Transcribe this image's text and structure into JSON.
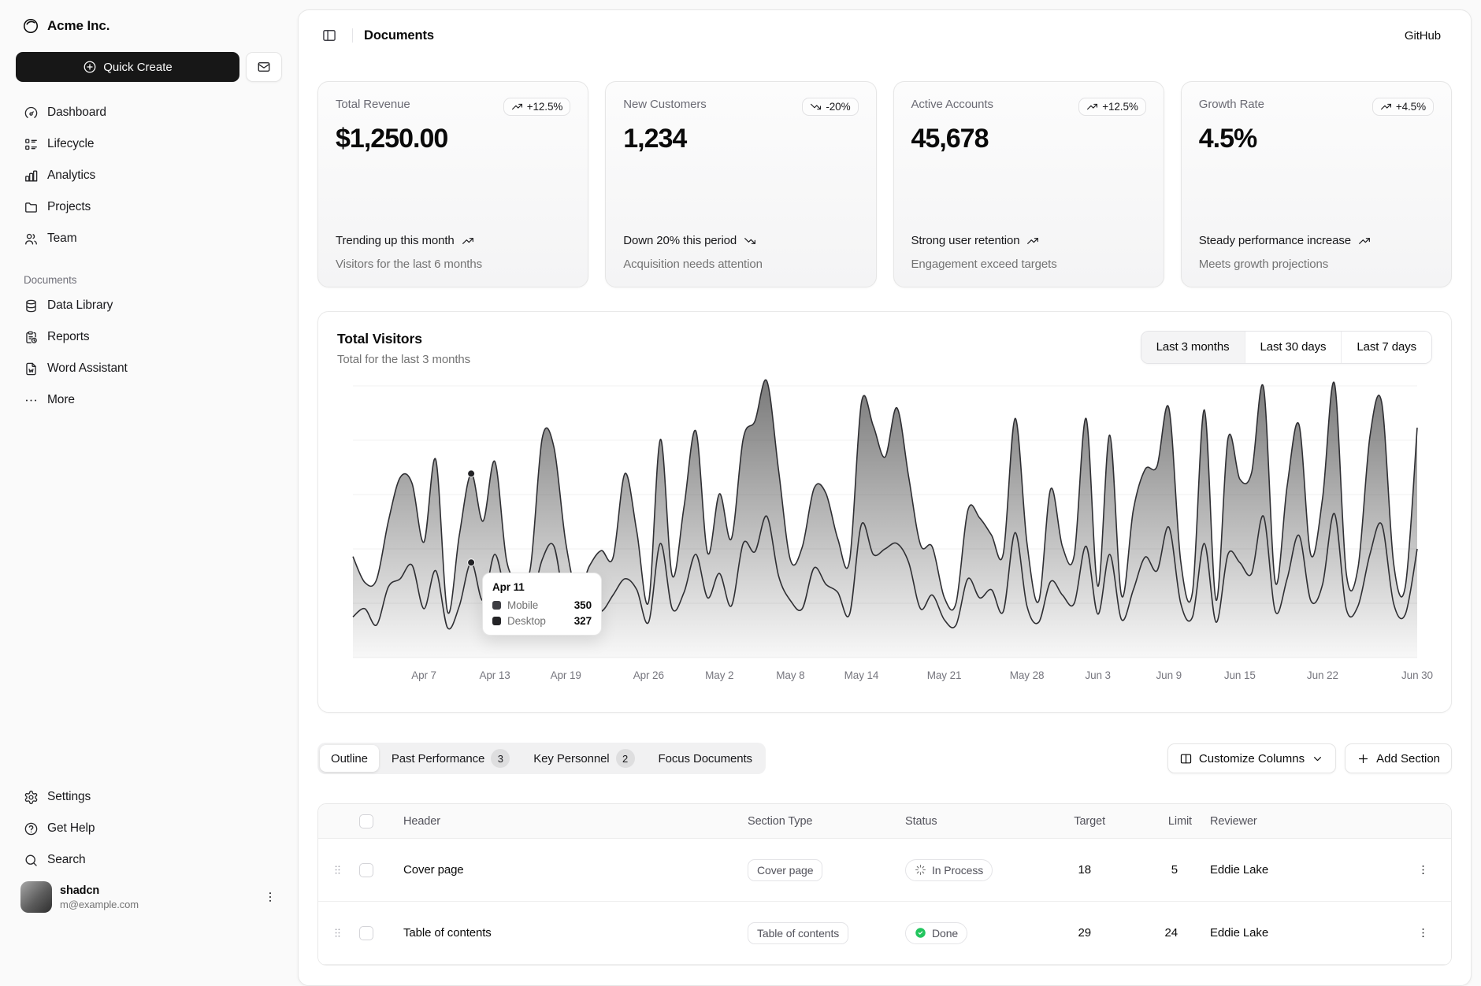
{
  "brand": {
    "name": "Acme Inc."
  },
  "sidebar": {
    "quick_create_label": "Quick Create",
    "nav": [
      {
        "label": "Dashboard",
        "icon": "gauge-icon"
      },
      {
        "label": "Lifecycle",
        "icon": "list-details-icon"
      },
      {
        "label": "Analytics",
        "icon": "bar-chart-icon"
      },
      {
        "label": "Projects",
        "icon": "folder-icon"
      },
      {
        "label": "Team",
        "icon": "users-icon"
      }
    ],
    "section_label": "Documents",
    "documents_nav": [
      {
        "label": "Data Library",
        "icon": "database-icon"
      },
      {
        "label": "Reports",
        "icon": "report-icon"
      },
      {
        "label": "Word Assistant",
        "icon": "file-word-icon"
      },
      {
        "label": "More",
        "icon": "ellipsis-icon"
      }
    ],
    "footer_nav": [
      {
        "label": "Settings",
        "icon": "gear-icon"
      },
      {
        "label": "Get Help",
        "icon": "help-icon"
      },
      {
        "label": "Search",
        "icon": "search-icon"
      }
    ],
    "user": {
      "name": "shadcn",
      "email": "m@example.com"
    }
  },
  "header": {
    "title": "Documents",
    "github_label": "GitHub"
  },
  "stat_cards": [
    {
      "title": "Total Revenue",
      "badge": "+12.5%",
      "value": "$1,250.00",
      "line1": "Trending up this month",
      "line2": "Visitors for the last 6 months",
      "trend": "up"
    },
    {
      "title": "New Customers",
      "badge": "-20%",
      "value": "1,234",
      "line1": "Down 20% this period",
      "line2": "Acquisition needs attention",
      "trend": "down"
    },
    {
      "title": "Active Accounts",
      "badge": "+12.5%",
      "value": "45,678",
      "line1": "Strong user retention",
      "line2": "Engagement exceed targets",
      "trend": "up"
    },
    {
      "title": "Growth Rate",
      "badge": "+4.5%",
      "value": "4.5%",
      "line1": "Steady performance increase",
      "line2": "Meets growth projections",
      "trend": "up"
    }
  ],
  "chart_card": {
    "title": "Total Visitors",
    "subtitle": "Total for the last 3 months",
    "ranges": [
      {
        "label": "Last 3 months",
        "selected": true
      },
      {
        "label": "Last 30 days",
        "selected": false
      },
      {
        "label": "Last 7 days",
        "selected": false
      }
    ]
  },
  "chart_data": {
    "type": "area",
    "stacked": true,
    "curve": "natural",
    "grid": true,
    "legend_position": "none",
    "x_range": [
      "Apr 1",
      "Jun 30"
    ],
    "y_max": 1000,
    "series": [
      {
        "name": "Mobile",
        "values": [
          150,
          180,
          120,
          260,
          290,
          340,
          180,
          320,
          110,
          190,
          350,
          210,
          380,
          220,
          170,
          190,
          360,
          410,
          180,
          150,
          200,
          170,
          230,
          290,
          250,
          130,
          420,
          180,
          240,
          380,
          220,
          310,
          190,
          420,
          390,
          520,
          300,
          210,
          180,
          330,
          270,
          240,
          160,
          490,
          380,
          400,
          420,
          350,
          180,
          230,
          140,
          120,
          290,
          220,
          250,
          170,
          460,
          190,
          130,
          280,
          230,
          200,
          410,
          160,
          380,
          140,
          250,
          370,
          320,
          480,
          200,
          150,
          420,
          130,
          380,
          350,
          310,
          520,
          170,
          290,
          450,
          210,
          270,
          530,
          180,
          190,
          380,
          490,
          200,
          160,
          400
        ]
      },
      {
        "name": "Desktop",
        "values": [
          222,
          97,
          167,
          242,
          373,
          301,
          245,
          409,
          59,
          261,
          327,
          292,
          342,
          137,
          120,
          138,
          446,
          364,
          243,
          89,
          137,
          224,
          138,
          387,
          215,
          75,
          383,
          122,
          315,
          454,
          165,
          293,
          247,
          385,
          481,
          498,
          388,
          149,
          227,
          293,
          335,
          197,
          197,
          448,
          473,
          338,
          499,
          315,
          235,
          177,
          82,
          81,
          252,
          294,
          201,
          213,
          420,
          233,
          78,
          340,
          178,
          178,
          470,
          103,
          439,
          88,
          294,
          323,
          385,
          438,
          155,
          92,
          492,
          81,
          426,
          307,
          371,
          475,
          107,
          341,
          408,
          169,
          317,
          480,
          132,
          141,
          434,
          448,
          149,
          103,
          446
        ]
      }
    ],
    "x_ticks": [
      {
        "index": 6,
        "label": "Apr 7"
      },
      {
        "index": 12,
        "label": "Apr 13"
      },
      {
        "index": 18,
        "label": "Apr 19"
      },
      {
        "index": 25,
        "label": "Apr 26"
      },
      {
        "index": 31,
        "label": "May 2"
      },
      {
        "index": 37,
        "label": "May 8"
      },
      {
        "index": 43,
        "label": "May 14"
      },
      {
        "index": 50,
        "label": "May 21"
      },
      {
        "index": 57,
        "label": "May 28"
      },
      {
        "index": 63,
        "label": "Jun 3"
      },
      {
        "index": 69,
        "label": "Jun 9"
      },
      {
        "index": 75,
        "label": "Jun 15"
      },
      {
        "index": 82,
        "label": "Jun 22"
      },
      {
        "index": 90,
        "label": "Jun 30"
      }
    ],
    "highlight": {
      "index": 10,
      "label": "Apr 11",
      "mobile": "350",
      "desktop": "327"
    },
    "colors": {
      "fill": "#4a4a4a",
      "stroke": "#2f2f33",
      "grid": "#f0f0f0"
    }
  },
  "tabs": [
    {
      "label": "Outline",
      "active": true
    },
    {
      "label": "Past Performance",
      "badge": "3"
    },
    {
      "label": "Key Personnel",
      "badge": "2"
    },
    {
      "label": "Focus Documents"
    }
  ],
  "toolbar": {
    "customize_label": "Customize Columns",
    "add_section_label": "Add Section"
  },
  "table": {
    "columns": {
      "header": "Header",
      "section_type": "Section Type",
      "status": "Status",
      "target": "Target",
      "limit": "Limit",
      "reviewer": "Reviewer"
    },
    "rows": [
      {
        "header": "Cover page",
        "section_type": "Cover page",
        "status": "In Process",
        "target": "18",
        "limit": "5",
        "reviewer": "Eddie Lake"
      },
      {
        "header": "Table of contents",
        "section_type": "Table of contents",
        "status": "Done",
        "target": "29",
        "limit": "24",
        "reviewer": "Eddie Lake"
      }
    ],
    "status_colors": {
      "done_green": "#22c55e"
    }
  }
}
